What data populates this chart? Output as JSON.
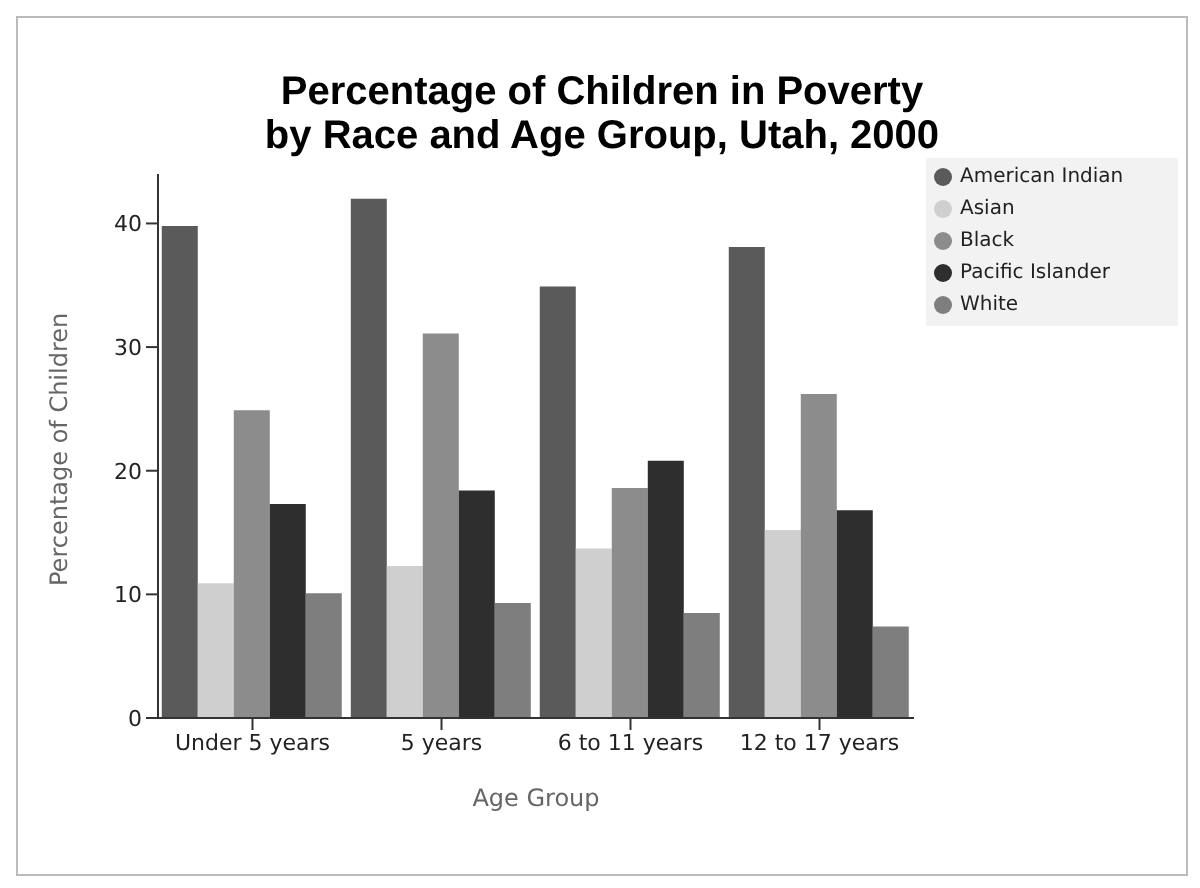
{
  "chart_data": {
    "type": "bar",
    "title": "Percentage of Children in Poverty\nby Race and Age Group, Utah, 2000",
    "xlabel": "Age Group",
    "ylabel": "Percentage of Children",
    "categories": [
      "Under 5 years",
      "5 years",
      "6 to 11 years",
      "12 to 17 years"
    ],
    "series": [
      {
        "name": "American Indian",
        "color": "#5a5a5a",
        "values": [
          39.8,
          42.0,
          34.9,
          38.1
        ]
      },
      {
        "name": "Asian",
        "color": "#cfcfcf",
        "values": [
          10.9,
          12.3,
          13.7,
          15.2
        ]
      },
      {
        "name": "Black",
        "color": "#8c8c8c",
        "values": [
          24.9,
          31.1,
          18.6,
          26.2
        ]
      },
      {
        "name": "Pacific Islander",
        "color": "#2e2e2e",
        "values": [
          17.3,
          18.4,
          20.8,
          16.8
        ]
      },
      {
        "name": "White",
        "color": "#7e7e7e",
        "values": [
          10.1,
          9.3,
          8.5,
          7.4
        ]
      }
    ],
    "ylim": [
      0,
      44
    ],
    "yticks": [
      0,
      10,
      20,
      30,
      40
    ],
    "grid": false,
    "legend": "top right"
  }
}
